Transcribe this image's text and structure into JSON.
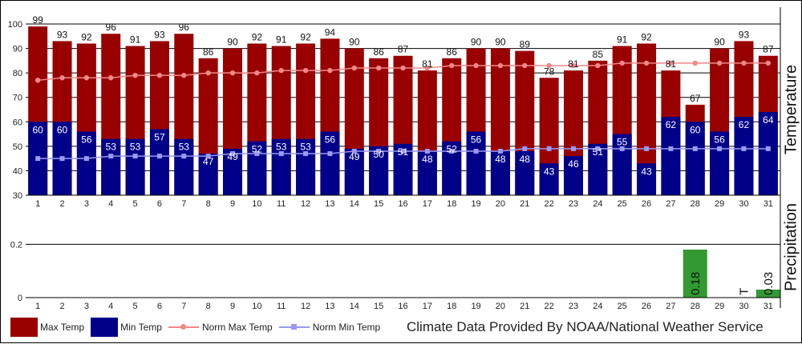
{
  "colors": {
    "max": "#990000",
    "min": "#000088",
    "norm_max": "#f08888",
    "norm_min": "#9999f0",
    "precip": "#339933"
  },
  "chart_data": [
    {
      "type": "bar",
      "ylabel": "Temperature",
      "ylim": [
        30,
        100
      ],
      "yticks": [
        30,
        40,
        50,
        60,
        70,
        80,
        90,
        100
      ],
      "grid": true,
      "categories": [
        "1",
        "2",
        "3",
        "4",
        "5",
        "6",
        "7",
        "8",
        "9",
        "10",
        "11",
        "12",
        "13",
        "14",
        "15",
        "16",
        "17",
        "18",
        "19",
        "20",
        "21",
        "22",
        "23",
        "24",
        "25",
        "26",
        "27",
        "28",
        "29",
        "30",
        "31"
      ],
      "series": [
        {
          "name": "Max Temp",
          "kind": "bar",
          "values": [
            99,
            93,
            92,
            96,
            91,
            93,
            96,
            86,
            90,
            92,
            91,
            92,
            94,
            90,
            86,
            87,
            81,
            86,
            90,
            90,
            89,
            78,
            81,
            85,
            91,
            92,
            81,
            67,
            90,
            93,
            87
          ]
        },
        {
          "name": "Min Temp",
          "kind": "bar",
          "values": [
            60,
            60,
            56,
            53,
            53,
            57,
            53,
            47,
            49,
            52,
            53,
            53,
            56,
            49,
            50,
            51,
            48,
            52,
            56,
            48,
            48,
            43,
            46,
            51,
            55,
            43,
            62,
            60,
            56,
            62,
            64
          ]
        },
        {
          "name": "Norm Max Temp",
          "kind": "line",
          "values": [
            77,
            78,
            78,
            78,
            79,
            79,
            79,
            80,
            80,
            80,
            81,
            81,
            81,
            82,
            82,
            82,
            82,
            83,
            83,
            83,
            83,
            83,
            83,
            83,
            84,
            84,
            84,
            84,
            84,
            84,
            84
          ]
        },
        {
          "name": "Norm Min Temp",
          "kind": "line",
          "values": [
            45,
            45,
            45,
            46,
            46,
            46,
            46,
            46,
            47,
            47,
            47,
            47,
            47,
            48,
            48,
            48,
            48,
            48,
            48,
            48,
            49,
            49,
            49,
            49,
            49,
            49,
            49,
            49,
            49,
            49,
            49
          ]
        }
      ]
    },
    {
      "type": "bar",
      "ylabel": "Precipitation",
      "ylim": [
        0,
        0.3
      ],
      "yticks": [
        "0",
        "0.2"
      ],
      "categories": [
        "1",
        "2",
        "3",
        "4",
        "5",
        "6",
        "7",
        "8",
        "9",
        "10",
        "11",
        "12",
        "13",
        "14",
        "15",
        "16",
        "17",
        "18",
        "19",
        "20",
        "21",
        "22",
        "23",
        "24",
        "25",
        "26",
        "27",
        "28",
        "29",
        "30",
        "31"
      ],
      "series": [
        {
          "name": "Precipitation",
          "values": [
            0,
            0,
            0,
            0,
            0,
            0,
            0,
            0,
            0,
            0,
            0,
            0,
            0,
            0,
            0,
            0,
            0,
            0,
            0,
            0,
            0,
            0,
            0,
            0,
            0,
            0,
            0,
            0.18,
            0,
            0,
            0.03
          ]
        }
      ],
      "annotations": [
        {
          "day": "28",
          "text": "0.18"
        },
        {
          "day": "30",
          "text": "T"
        },
        {
          "day": "31",
          "text": "0.03"
        }
      ]
    }
  ],
  "legend": [
    {
      "label": "Max Temp",
      "style": "box",
      "color_key": "max"
    },
    {
      "label": "Min Temp",
      "style": "box",
      "color_key": "min"
    },
    {
      "label": "Norm Max Temp",
      "style": "line-circle",
      "color_key": "norm_max"
    },
    {
      "label": "Norm Min Temp",
      "style": "line-square",
      "color_key": "norm_min"
    }
  ],
  "credit": "Climate Data Provided By NOAA/National Weather Service"
}
